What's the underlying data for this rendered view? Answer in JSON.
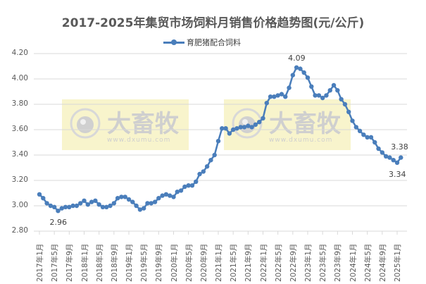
{
  "chart_data": {
    "type": "line",
    "title": "2017-2025年集贸市场饲料月销售价格趋势图(元/公斤)",
    "xlabel": "",
    "ylabel": "",
    "ylim": [
      2.8,
      4.2
    ],
    "yticks": [
      "4.20",
      "4.00",
      "3.80",
      "3.60",
      "3.40",
      "3.20",
      "3.00",
      "2.80"
    ],
    "grid": true,
    "legend_position": "top",
    "xtick_labels": [
      "2017年1月",
      "2017年5月",
      "2017年9月",
      "2018年1月",
      "2018年5月",
      "2018年9月",
      "2019年1月",
      "2019年5月",
      "2019年9月",
      "2020年1月",
      "2020年5月",
      "2020年9月",
      "2021年1月",
      "2021年5月",
      "2021年9月",
      "2022年1月",
      "2022年5月",
      "2022年9月",
      "2023年1月",
      "2023年5月",
      "2023年9月",
      "2024年1月",
      "2024年5月",
      "2024年9月",
      "2025年1月"
    ],
    "series": [
      {
        "name": "育肥猪配合饲料",
        "color": "#4a7ebb",
        "start": "2017年1月",
        "values": [
          3.09,
          3.06,
          3.02,
          3.0,
          2.99,
          2.96,
          2.98,
          2.99,
          2.99,
          3.0,
          3.0,
          3.02,
          3.04,
          3.01,
          3.03,
          3.04,
          3.01,
          2.99,
          2.99,
          3.0,
          3.02,
          3.06,
          3.07,
          3.07,
          3.05,
          3.03,
          3.0,
          2.97,
          2.98,
          3.02,
          3.02,
          3.03,
          3.06,
          3.08,
          3.09,
          3.08,
          3.07,
          3.11,
          3.12,
          3.15,
          3.16,
          3.16,
          3.19,
          3.25,
          3.27,
          3.31,
          3.36,
          3.4,
          3.51,
          3.61,
          3.61,
          3.57,
          3.6,
          3.61,
          3.62,
          3.62,
          3.63,
          3.62,
          3.64,
          3.66,
          3.69,
          3.81,
          3.86,
          3.86,
          3.87,
          3.88,
          3.86,
          3.93,
          4.03,
          4.09,
          4.08,
          4.05,
          4.01,
          3.94,
          3.87,
          3.87,
          3.85,
          3.87,
          3.91,
          3.95,
          3.91,
          3.84,
          3.8,
          3.74,
          3.67,
          3.62,
          3.59,
          3.56,
          3.54,
          3.54,
          3.5,
          3.45,
          3.42,
          3.39,
          3.38,
          3.36,
          3.34,
          3.38
        ]
      }
    ],
    "annotations": [
      {
        "text": "2.96",
        "index": 5,
        "position": "below"
      },
      {
        "text": "4.09",
        "index": 69,
        "position": "above"
      },
      {
        "text": "3.34",
        "index": 96,
        "position": "below"
      },
      {
        "text": "3.38",
        "index": 97,
        "position": "above"
      }
    ]
  },
  "watermark": {
    "brand": "大畜牧",
    "url": "www.dxumu.com",
    "background": "#f4ecaa"
  },
  "colors": {
    "line": "#4a7ebb",
    "grid": "#d9d9d9",
    "text": "#595959"
  }
}
